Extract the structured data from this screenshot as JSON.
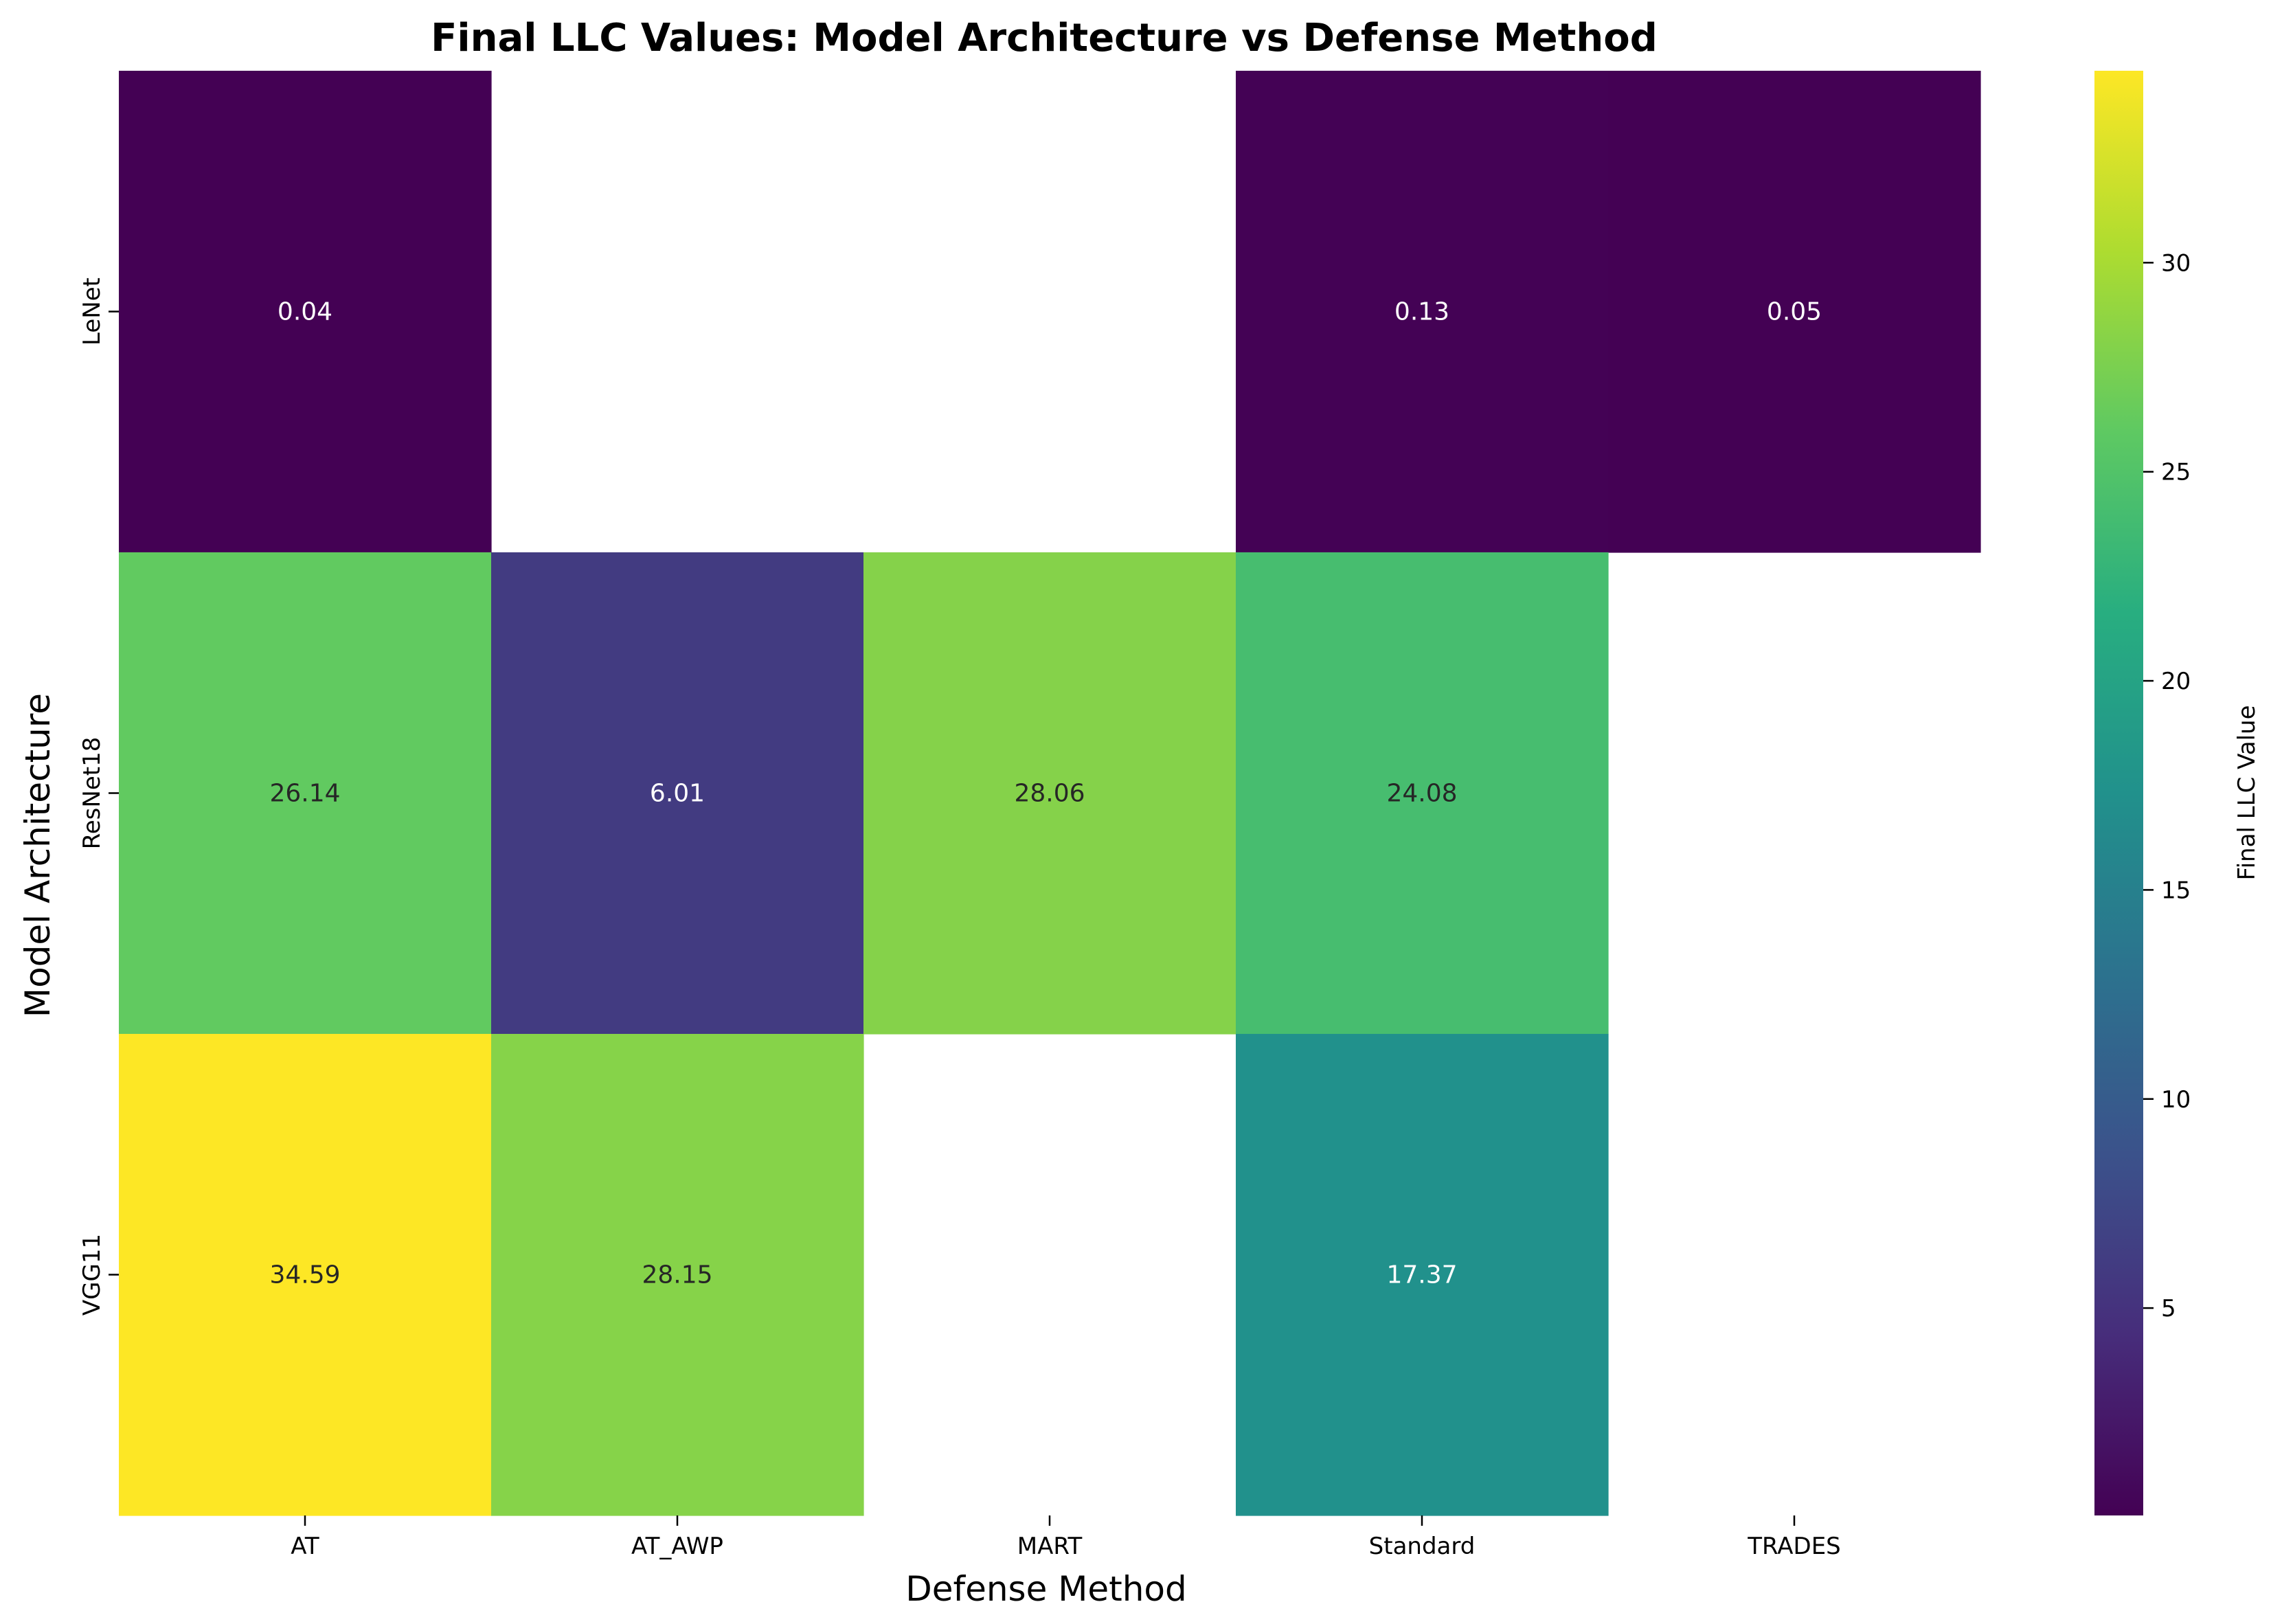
{
  "chart_data": {
    "type": "heatmap",
    "title": "Final LLC Values: Model Architecture vs Defense Method",
    "xlabel": "Defense Method",
    "ylabel": "Model Architecture",
    "x_categories": [
      "AT",
      "AT_AWP",
      "MART",
      "Standard",
      "TRADES"
    ],
    "y_categories": [
      "LeNet",
      "ResNet18",
      "VGG11"
    ],
    "values": [
      [
        0.04,
        null,
        null,
        0.13,
        0.05
      ],
      [
        26.14,
        6.01,
        28.06,
        24.08,
        null
      ],
      [
        34.59,
        28.15,
        null,
        17.37,
        null
      ]
    ],
    "value_labels": [
      [
        "0.04",
        "",
        "",
        "0.13",
        "0.05"
      ],
      [
        "26.14",
        "6.01",
        "28.06",
        "24.08",
        ""
      ],
      [
        "34.59",
        "28.15",
        "",
        "17.37",
        ""
      ]
    ],
    "colormap": "viridis",
    "color_range": [
      0.04,
      34.59
    ],
    "colorbar": {
      "label": "Final LLC Value",
      "ticks": [
        5,
        10,
        15,
        20,
        25,
        30
      ],
      "tick_labels": [
        "5",
        "10",
        "15",
        "20",
        "25",
        "30"
      ]
    },
    "grid": false,
    "legend": "colorbar-right"
  }
}
